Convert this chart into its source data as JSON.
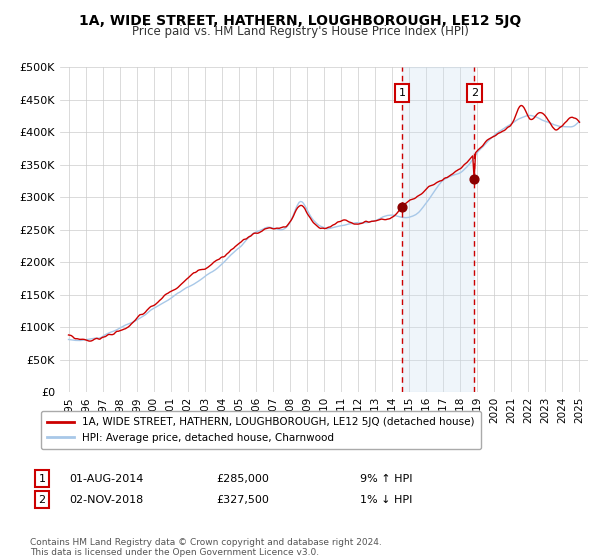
{
  "title": "1A, WIDE STREET, HATHERN, LOUGHBOROUGH, LE12 5JQ",
  "subtitle": "Price paid vs. HM Land Registry's House Price Index (HPI)",
  "ylim": [
    0,
    500000
  ],
  "yticks": [
    0,
    50000,
    100000,
    150000,
    200000,
    250000,
    300000,
    350000,
    400000,
    450000,
    500000
  ],
  "ytick_labels": [
    "£0",
    "£50K",
    "£100K",
    "£150K",
    "£200K",
    "£250K",
    "£300K",
    "£350K",
    "£400K",
    "£450K",
    "£500K"
  ],
  "hpi_color": "#a8c8e8",
  "price_color": "#cc0000",
  "marker_color": "#8b0000",
  "shade_color": "#cce0f0",
  "dashed_color": "#cc0000",
  "background_color": "#ffffff",
  "grid_color": "#cccccc",
  "legend_border_color": "#aaaaaa",
  "sale1_date": 2014.583,
  "sale1_price": 285000,
  "sale1_label": "1",
  "sale1_hpi_pct": "9% ↑ HPI",
  "sale1_date_str": "01-AUG-2014",
  "sale2_date": 2018.833,
  "sale2_price": 327500,
  "sale2_label": "2",
  "sale2_hpi_pct": "1% ↓ HPI",
  "sale2_date_str": "02-NOV-2018",
  "legend1_label": "1A, WIDE STREET, HATHERN, LOUGHBOROUGH, LE12 5JQ (detached house)",
  "legend2_label": "HPI: Average price, detached house, Charnwood",
  "footnote": "Contains HM Land Registry data © Crown copyright and database right 2024.\nThis data is licensed under the Open Government Licence v3.0.",
  "start_year": 1995,
  "end_year": 2025
}
